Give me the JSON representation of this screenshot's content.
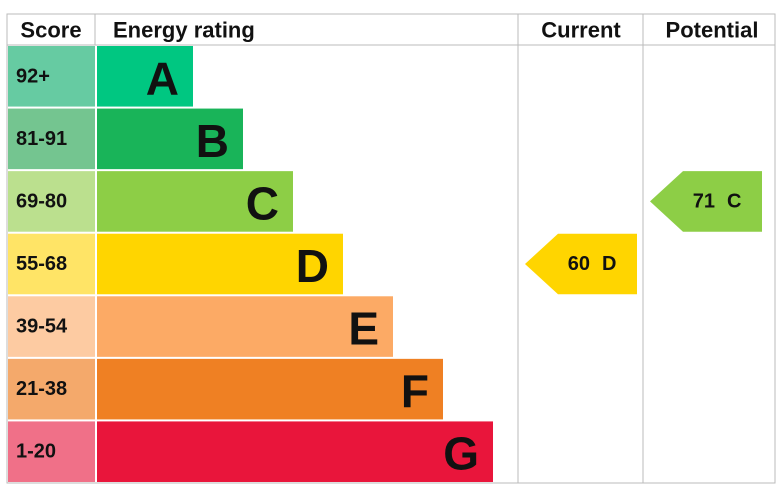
{
  "header": {
    "score": "Score",
    "energy_rating": "Energy rating",
    "current": "Current",
    "potential": "Potential"
  },
  "bands": [
    {
      "score": "92+",
      "letter": "A",
      "color": "#00c781",
      "score_color": "#66cba2"
    },
    {
      "score": "81-91",
      "letter": "B",
      "color": "#19b459",
      "score_color": "#74c590"
    },
    {
      "score": "69-80",
      "letter": "C",
      "color": "#8dce46",
      "score_color": "#bbe08e"
    },
    {
      "score": "55-68",
      "letter": "D",
      "color": "#ffd500",
      "score_color": "#ffe466"
    },
    {
      "score": "39-54",
      "letter": "E",
      "color": "#fcaa65",
      "score_color": "#fdcba2"
    },
    {
      "score": "21-38",
      "letter": "F",
      "color": "#ef8023",
      "score_color": "#f4a96b"
    },
    {
      "score": "1-20",
      "letter": "G",
      "color": "#e9153b",
      "score_color": "#f07088"
    }
  ],
  "current": {
    "value": 60,
    "letter": "D"
  },
  "potential": {
    "value": 71,
    "letter": "C"
  }
}
